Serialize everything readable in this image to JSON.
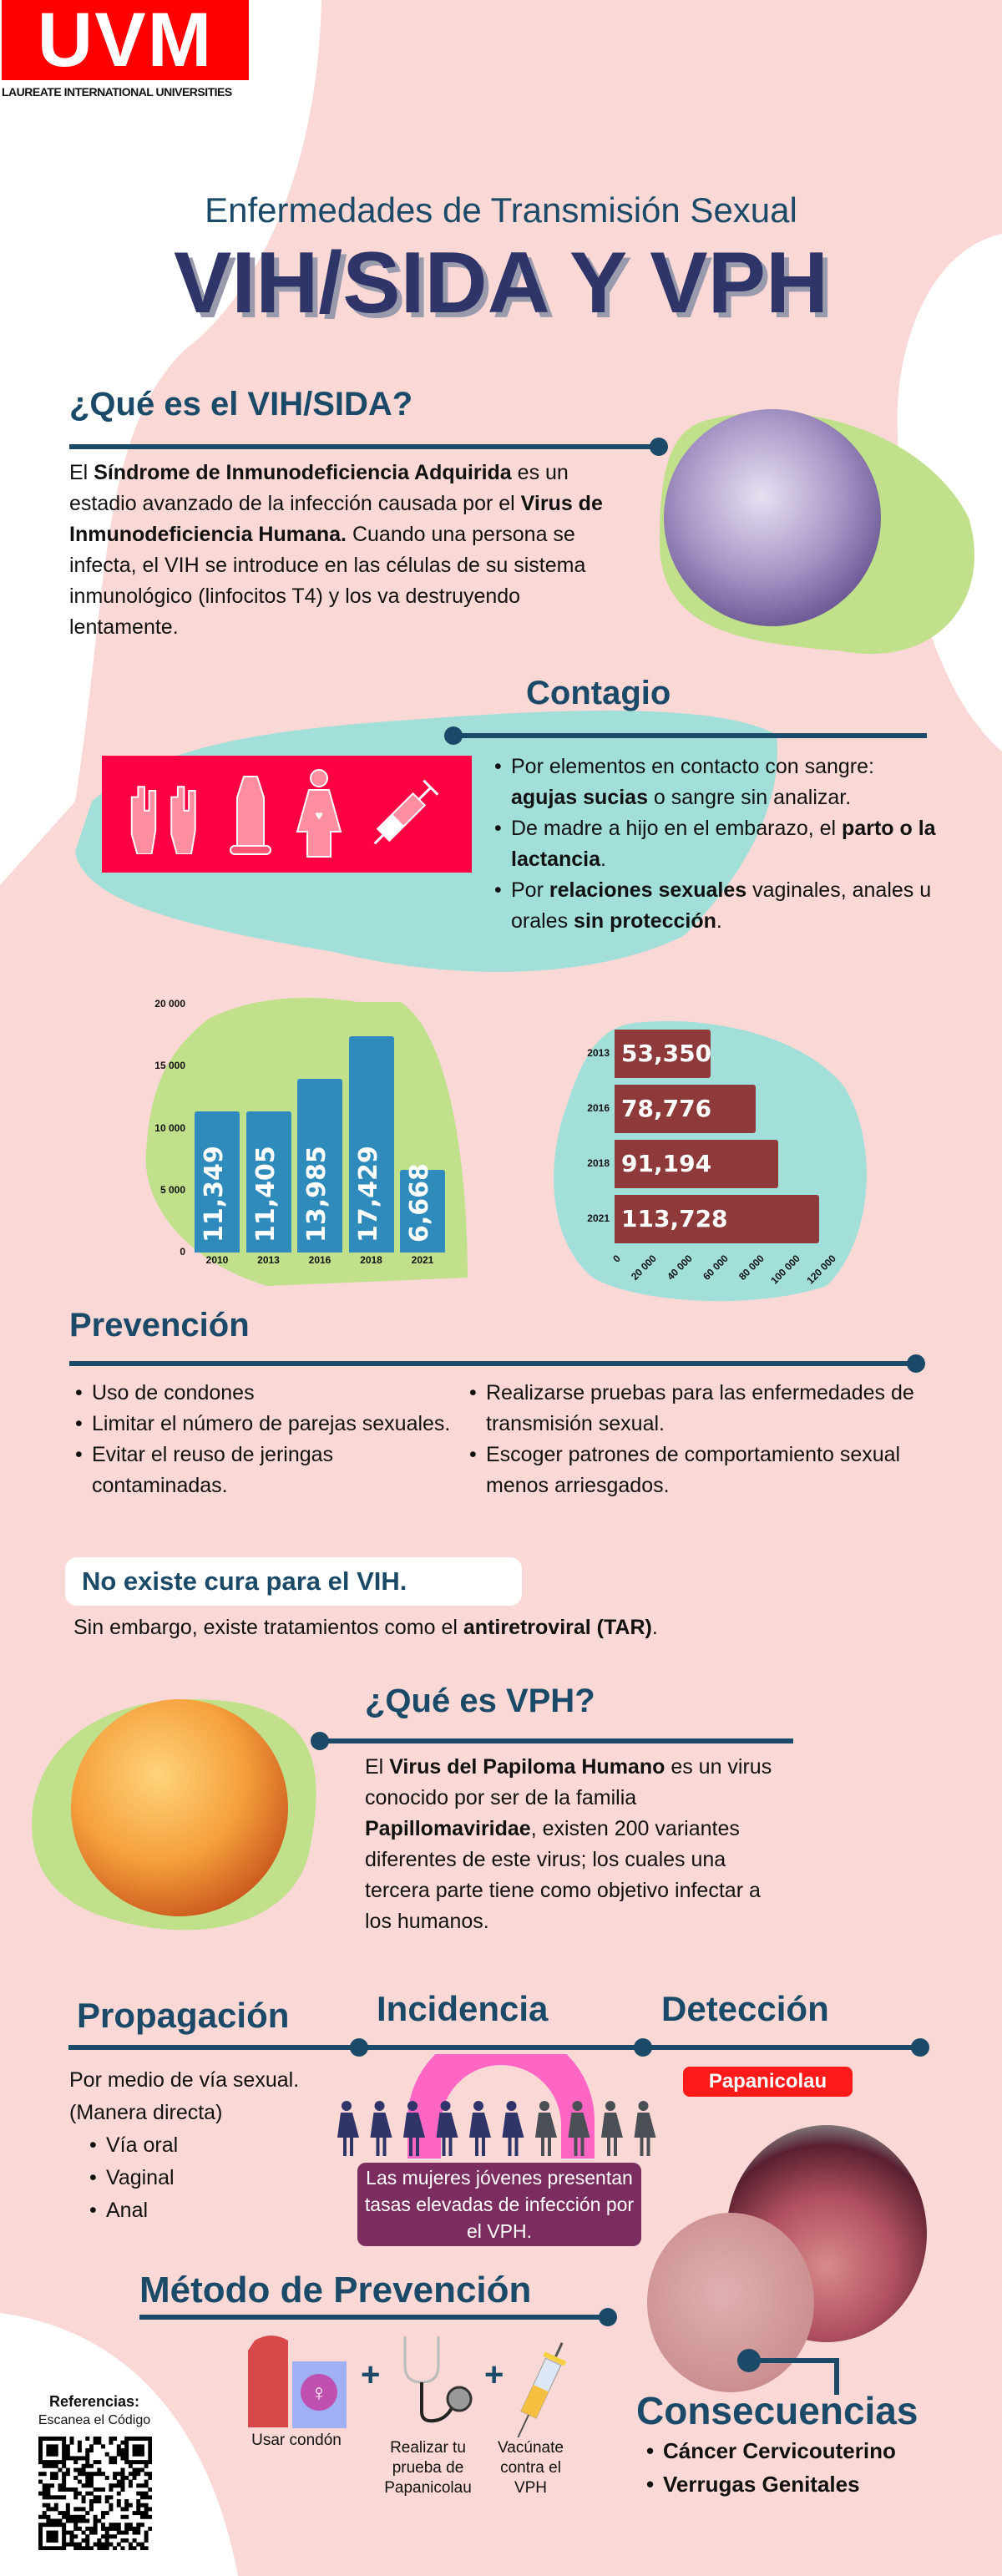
{
  "logo": {
    "text": "UVM",
    "tagline": "LAUREATE INTERNATIONAL UNIVERSITIES",
    "color": "#ff0000"
  },
  "header": {
    "subtitle": "Enfermedades de Transmisión Sexual",
    "title": "VIH/SIDA Y VPH"
  },
  "colors": {
    "heading": "#1a4a68",
    "background": "#f9d8d6",
    "green_blob": "#c0e08b",
    "teal_blob": "#a3dfd9",
    "bar_blue": "#2e8bbb",
    "bar_red": "#8e3a3a",
    "contagio_box": "#ff0044",
    "incidence_box": "#7b2d5f"
  },
  "vih": {
    "heading": "¿Qué es el VIH/SIDA?",
    "paragraph": [
      {
        "t": "El "
      },
      {
        "b": "Síndrome de Inmunodeficiencia Adquirida"
      },
      {
        "t": " es un estadio avanzado de la infección causada por el "
      },
      {
        "b": "Virus de Inmunodeficiencia Humana."
      },
      {
        "t": " Cuando una persona se infecta, el VIH se introduce en las células de su sistema inmunológico (linfocitos T4) y los va destruyendo lentamente."
      }
    ]
  },
  "contagio": {
    "heading": "Contagio",
    "icons": [
      "hands-icon",
      "condom-icon",
      "pregnant-woman-icon",
      "syringe-icon"
    ],
    "items": [
      [
        {
          "t": "Por elementos en contacto con sangre: "
        },
        {
          "b": "agujas sucias"
        },
        {
          "t": " o sangre sin analizar."
        }
      ],
      [
        {
          "t": "De madre a hijo en el embarazo, el "
        },
        {
          "b": "parto o la lactancia"
        },
        {
          "t": "."
        }
      ],
      [
        {
          "t": "Por "
        },
        {
          "b": "relaciones sexuales"
        },
        {
          "t": " vaginales, anales u orales "
        },
        {
          "b": "sin protección"
        },
        {
          "t": "."
        }
      ]
    ]
  },
  "chart_data": [
    {
      "type": "bar",
      "orientation": "vertical",
      "categories": [
        "2010",
        "2013",
        "2016",
        "2018",
        "2021"
      ],
      "values": [
        11349,
        11405,
        13985,
        17429,
        6668
      ],
      "data_labels": [
        "11,349",
        "11,405",
        "13,985",
        "17,429",
        "6,668"
      ],
      "ylim": [
        0,
        20000
      ],
      "yticks": [
        "0",
        "5 000",
        "10 000",
        "15 000",
        "20 000"
      ],
      "grid": false,
      "title": "",
      "xlabel": "",
      "ylabel": ""
    },
    {
      "type": "bar",
      "orientation": "horizontal",
      "categories": [
        "2013",
        "2016",
        "2018",
        "2021"
      ],
      "values": [
        53350,
        78776,
        91194,
        113728
      ],
      "data_labels": [
        "53,350",
        "78,776",
        "91,194",
        "113,728"
      ],
      "xlim": [
        0,
        120000
      ],
      "xticks": [
        "0",
        "20 000",
        "40 000",
        "60 000",
        "80 000",
        "100 000",
        "120 000"
      ],
      "grid": false,
      "title": "",
      "xlabel": "",
      "ylabel": ""
    }
  ],
  "prevencion": {
    "heading": "Prevención",
    "left": [
      "Uso de condones",
      "Limitar el número de parejas sexuales.",
      "Evitar el reuso de jeringas contaminadas."
    ],
    "right": [
      "Realizarse pruebas para las enfermedades de transmisión sexual.",
      "Escoger patrones de comportamiento sexual menos arriesgados."
    ],
    "no_cure": "No existe cura para el VIH.",
    "treatment_pre": "Sin embargo, existe tratamientos como el ",
    "treatment_bold": "antiretroviral (TAR)",
    "treatment_post": "."
  },
  "vph": {
    "heading": "¿Qué es VPH?",
    "paragraph": [
      {
        "t": "El "
      },
      {
        "b": "Virus del Papiloma Humano"
      },
      {
        "t": " es un virus conocido por ser de la familia "
      },
      {
        "b": "Papillomaviridae"
      },
      {
        "t": ", existen 200 variantes diferentes de este virus; los cuales una tercera parte tiene como objetivo infectar a los humanos."
      }
    ]
  },
  "propagacion": {
    "heading": "Propagación",
    "line1": "Por medio de vía sexual.",
    "line2": "(Manera directa)",
    "items": [
      "Vía oral",
      "Vaginal",
      "Anal"
    ]
  },
  "incidencia": {
    "heading": "Incidencia",
    "people_total": 10,
    "people_highlighted": 6,
    "text": "Las mujeres jóvenes presentan tasas elevadas de infección por el VPH."
  },
  "deteccion": {
    "heading": "Detección",
    "badge": "Papanicolau"
  },
  "metodo": {
    "heading": "Método de Prevención",
    "items": [
      {
        "icon": "condom-package-icon",
        "label": "Usar condón"
      },
      {
        "icon": "stethoscope-icon",
        "label": "Realizar tu prueba de Papanicolau"
      },
      {
        "icon": "syringe-icon",
        "label": "Vacúnate contra el VPH"
      }
    ],
    "plus": "+"
  },
  "consecuencias": {
    "heading": "Consecuencias",
    "items": [
      "Cáncer Cervicouterino",
      "Verrugas Genitales"
    ]
  },
  "referencias": {
    "title": "Referencias:",
    "subtitle": "Escanea el Código"
  }
}
